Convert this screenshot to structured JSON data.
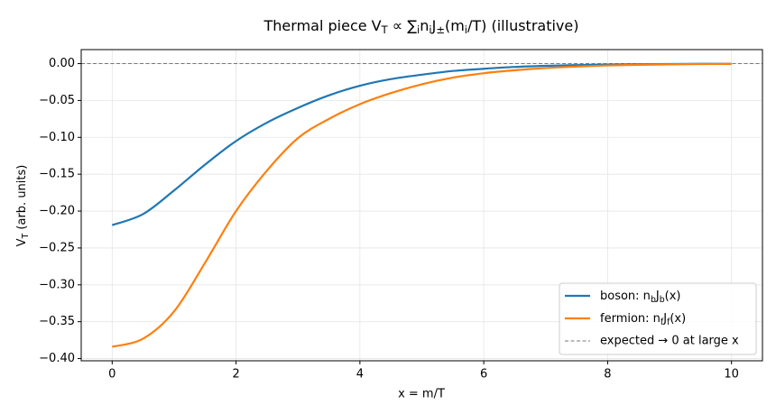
{
  "chart_data": {
    "type": "line",
    "title": "Thermal piece V_T ∝ ∑_in_iJ_±(m_i/T) (illustrative)",
    "xlabel": "x = m/T",
    "ylabel": "V_T (arb. units)",
    "x": [
      0,
      0.5,
      1,
      1.5,
      2,
      2.5,
      3,
      3.5,
      4,
      4.5,
      5,
      5.5,
      6,
      6.5,
      7,
      7.5,
      8,
      8.5,
      9,
      9.5,
      10
    ],
    "series": [
      {
        "name": "boson: n_bJ_b(x)",
        "color": "#1f77b4",
        "values": [
          -0.219,
          -0.204,
          -0.172,
          -0.137,
          -0.105,
          -0.08,
          -0.06,
          -0.043,
          -0.03,
          -0.021,
          -0.015,
          -0.01,
          -0.007,
          -0.0045,
          -0.003,
          -0.002,
          -0.0013,
          -0.0008,
          -0.0005,
          -0.0003,
          -0.0002
        ]
      },
      {
        "name": "fermion: n_fJ_f(x)",
        "color": "#ff7f0e",
        "values": [
          -0.384,
          -0.373,
          -0.336,
          -0.27,
          -0.2,
          -0.145,
          -0.101,
          -0.075,
          -0.055,
          -0.04,
          -0.028,
          -0.019,
          -0.013,
          -0.009,
          -0.006,
          -0.004,
          -0.0025,
          -0.0016,
          -0.001,
          -0.0006,
          -0.0004
        ]
      }
    ],
    "reference_line": {
      "name": "expected → 0 at large x",
      "value": 0,
      "color": "#777777"
    },
    "xlim": [
      -0.5,
      10.5
    ],
    "ylim": [
      -0.403,
      0.019
    ],
    "xticks": [
      0,
      2,
      4,
      6,
      8,
      10
    ],
    "yticks": [
      {
        "value": 0,
        "label": "0.00"
      },
      {
        "value": -0.05,
        "label": "−0.05"
      },
      {
        "value": -0.1,
        "label": "−0.10"
      },
      {
        "value": -0.15,
        "label": "−0.15"
      },
      {
        "value": -0.2,
        "label": "−0.20"
      },
      {
        "value": -0.25,
        "label": "−0.25"
      },
      {
        "value": -0.3,
        "label": "−0.30"
      },
      {
        "value": -0.35,
        "label": "−0.35"
      },
      {
        "value": -0.4,
        "label": "−0.40"
      }
    ],
    "grid": true,
    "legend": "lower right"
  }
}
